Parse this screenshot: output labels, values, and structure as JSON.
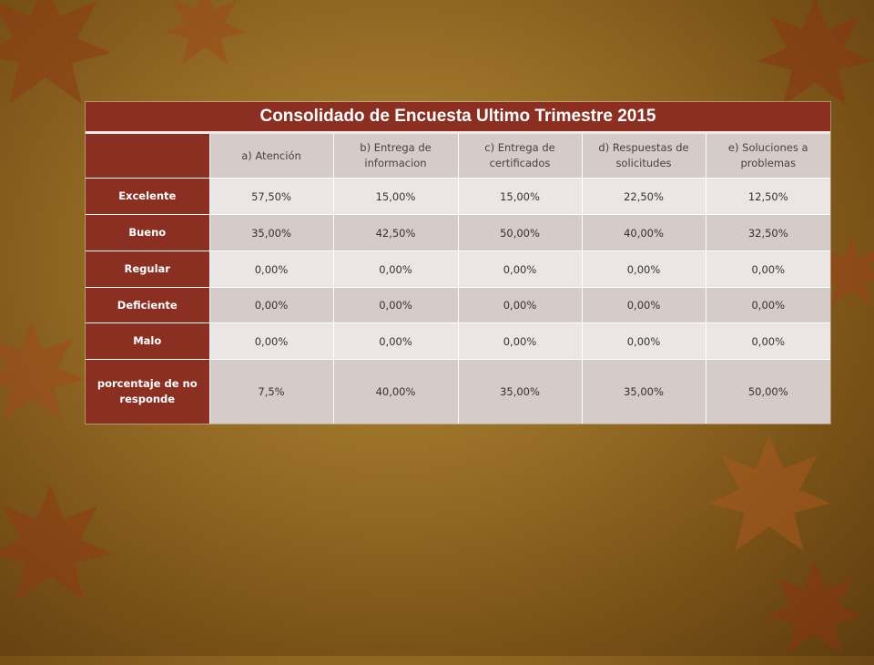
{
  "table": {
    "title": "Consolidado de  Encuesta Ultimo Trimestre 2015",
    "columns": [
      "a) Atención",
      "b) Entrega de informacion",
      "c) Entrega de certificados",
      "d) Respuestas de solicitudes",
      "e) Soluciones a problemas"
    ],
    "rows": [
      {
        "label": "Excelente",
        "values": [
          "57,50%",
          "15,00%",
          "15,00%",
          "22,50%",
          "12,50%"
        ]
      },
      {
        "label": "Bueno",
        "values": [
          "35,00%",
          "42,50%",
          "50,00%",
          "40,00%",
          "32,50%"
        ]
      },
      {
        "label": "Regular",
        "values": [
          "0,00%",
          "0,00%",
          "0,00%",
          "0,00%",
          "0,00%"
        ]
      },
      {
        "label": "Deficiente",
        "values": [
          "0,00%",
          "0,00%",
          "0,00%",
          "0,00%",
          "0,00%"
        ]
      },
      {
        "label": "Malo",
        "values": [
          "0,00%",
          "0,00%",
          "0,00%",
          "0,00%",
          "0,00%"
        ]
      },
      {
        "label": "porcentaje de no responde",
        "values": [
          "7,5%",
          "40,00%",
          "35,00%",
          "35,00%",
          "50,00%"
        ]
      }
    ]
  }
}
